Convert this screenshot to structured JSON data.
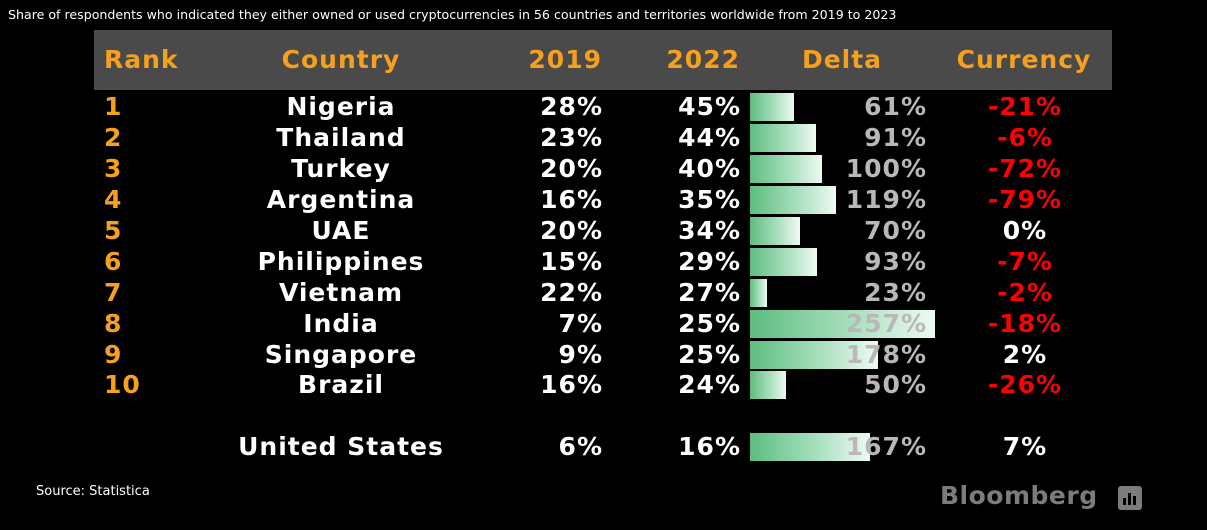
{
  "subtitle": "Share of respondents who indicated they either owned or used cryptocurrencies in 56 countries and territories worldwide from 2019 to 2023",
  "source": "Source: Statistica",
  "brand": "Bloomberg",
  "brand_icon": "bloomberg-bars-icon",
  "colors": {
    "header_bg": "#4a4a4a",
    "header_text": "#f7a01d",
    "rank_text": "#f7a01d",
    "bar": "#5ebd80",
    "delta_text": "#b8b8b8",
    "negative": "#ff0000",
    "positive": "#ffffff"
  },
  "chart_data": {
    "type": "table",
    "columns": [
      "Rank",
      "Country",
      "2019",
      "2022",
      "Delta",
      "Currency"
    ],
    "delta_bar_max": 257,
    "rows": [
      {
        "rank": "1",
        "country": "Nigeria",
        "y2019": "28%",
        "y2022": "45%",
        "delta": "61%",
        "delta_value": 61,
        "currency": "-21%",
        "negative": true
      },
      {
        "rank": "2",
        "country": "Thailand",
        "y2019": "23%",
        "y2022": "44%",
        "delta": "91%",
        "delta_value": 91,
        "currency": "-6%",
        "negative": true
      },
      {
        "rank": "3",
        "country": "Turkey",
        "y2019": "20%",
        "y2022": "40%",
        "delta": "100%",
        "delta_value": 100,
        "currency": "-72%",
        "negative": true
      },
      {
        "rank": "4",
        "country": "Argentina",
        "y2019": "16%",
        "y2022": "35%",
        "delta": "119%",
        "delta_value": 119,
        "currency": "-79%",
        "negative": true
      },
      {
        "rank": "5",
        "country": "UAE",
        "y2019": "20%",
        "y2022": "34%",
        "delta": "70%",
        "delta_value": 70,
        "currency": "0%",
        "negative": false
      },
      {
        "rank": "6",
        "country": "Philippines",
        "y2019": "15%",
        "y2022": "29%",
        "delta": "93%",
        "delta_value": 93,
        "currency": "-7%",
        "negative": true
      },
      {
        "rank": "7",
        "country": "Vietnam",
        "y2019": "22%",
        "y2022": "27%",
        "delta": "23%",
        "delta_value": 23,
        "currency": "-2%",
        "negative": true
      },
      {
        "rank": "8",
        "country": "India",
        "y2019": "7%",
        "y2022": "25%",
        "delta": "257%",
        "delta_value": 257,
        "currency": "-18%",
        "negative": true
      },
      {
        "rank": "9",
        "country": "Singapore",
        "y2019": "9%",
        "y2022": "25%",
        "delta": "178%",
        "delta_value": 178,
        "currency": "2%",
        "negative": false
      },
      {
        "rank": "10",
        "country": "Brazil",
        "y2019": "16%",
        "y2022": "24%",
        "delta": "50%",
        "delta_value": 50,
        "currency": "-26%",
        "negative": true
      },
      {
        "rank": "",
        "country": "United States",
        "y2019": "6%",
        "y2022": "16%",
        "delta": "167%",
        "delta_value": 167,
        "currency": "7%",
        "negative": false
      }
    ]
  }
}
